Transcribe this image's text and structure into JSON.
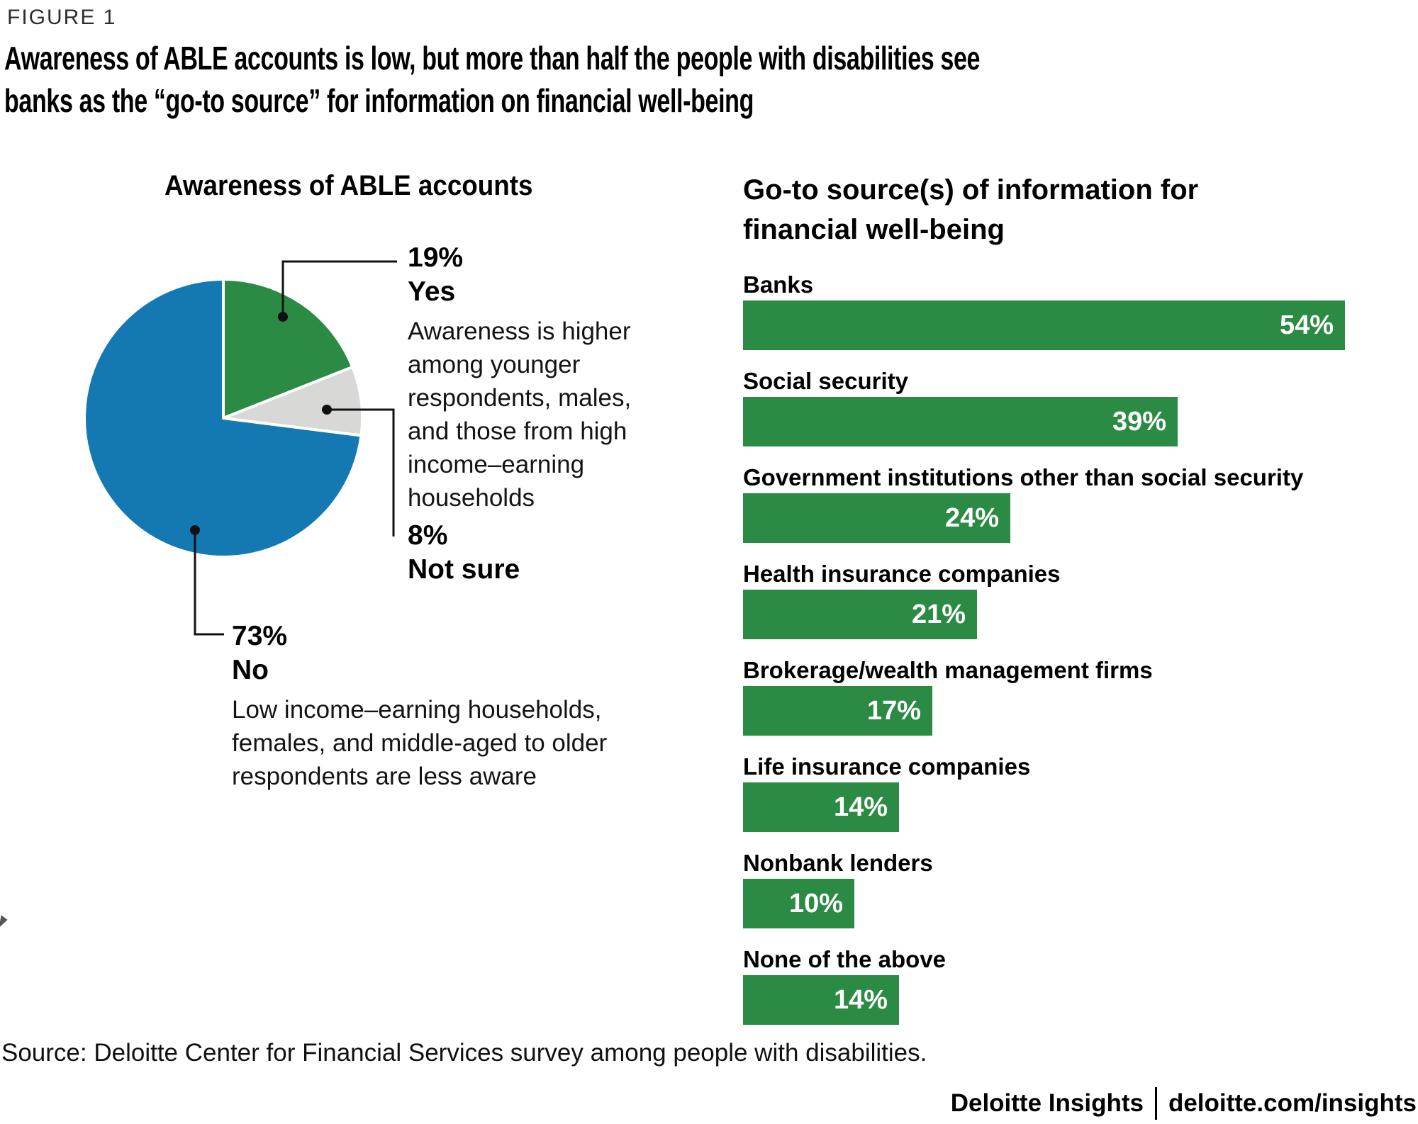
{
  "figure_label": "FIGURE 1",
  "title": {
    "line1": "Awareness of ABLE accounts is low, but more than half the people with disabilities see",
    "line2": "banks as the “go-to source” for information on financial well-being"
  },
  "pie_section": {
    "title": "Awareness of ABLE accounts",
    "callouts": {
      "yes": {
        "pct": "19%",
        "label": "Yes",
        "note": "Awareness is higher among younger respondents, males, and those from high income–earning households"
      },
      "not_sure": {
        "pct": "8%",
        "label": "Not sure"
      },
      "no": {
        "pct": "73%",
        "label": "No",
        "note": "Low income–earning households, females, and middle-aged to older respondents are less aware"
      }
    }
  },
  "bar_section": {
    "title": "Go-to source(s) of information for financial well-being",
    "items": [
      {
        "label": "Banks",
        "value": 54,
        "pct_label": "54%"
      },
      {
        "label": "Social security",
        "value": 39,
        "pct_label": "39%"
      },
      {
        "label": "Government institutions other than social security",
        "value": 24,
        "pct_label": "24%"
      },
      {
        "label": "Health insurance companies",
        "value": 21,
        "pct_label": "21%"
      },
      {
        "label": "Brokerage/wealth management firms",
        "value": 17,
        "pct_label": "17%"
      },
      {
        "label": "Life insurance companies",
        "value": 14,
        "pct_label": "14%"
      },
      {
        "label": "Nonbank lenders",
        "value": 10,
        "pct_label": "10%"
      },
      {
        "label": "None of the above",
        "value": 14,
        "pct_label": "14%"
      }
    ]
  },
  "footer": {
    "source": "Source: Deloitte Center for Financial Services survey among people with disabilities.",
    "brand": "Deloitte Insights",
    "brand_url": "deloitte.com/insights"
  },
  "colors": {
    "green": "#2b8a43",
    "blue": "#1479b2",
    "gray": "#d8d8d6",
    "callout": "#111111",
    "bar_value_label": "#ffffff"
  },
  "chart_data": [
    {
      "type": "pie",
      "title": "Awareness of ABLE accounts",
      "labels": [
        "Yes",
        "Not sure",
        "No"
      ],
      "values": [
        19,
        8,
        73
      ],
      "unit": "%",
      "colors": [
        "#2b8a43",
        "#d8d8d6",
        "#1479b2"
      ],
      "start_angle": "12 o'clock",
      "direction": "clockwise",
      "annotations": [
        "19% Yes — Awareness is higher among younger respondents, males, and those from high income–earning households",
        "8% Not sure",
        "73% No — Low income–earning households, females, and middle-aged to older respondents are less aware"
      ]
    },
    {
      "type": "bar",
      "orientation": "horizontal",
      "title": "Go-to source(s) of information for financial well-being",
      "categories": [
        "Banks",
        "Social security",
        "Government institutions other than social security",
        "Health insurance companies",
        "Brokerage/wealth management firms",
        "Life insurance companies",
        "Nonbank lenders",
        "None of the above"
      ],
      "values": [
        54,
        39,
        24,
        21,
        17,
        14,
        10,
        14
      ],
      "unit": "%",
      "bar_color": "#2b8a43",
      "xlim": [
        0,
        60
      ],
      "grid": false,
      "axes": "none",
      "value_labels": "inside bar, right-aligned, white"
    }
  ]
}
